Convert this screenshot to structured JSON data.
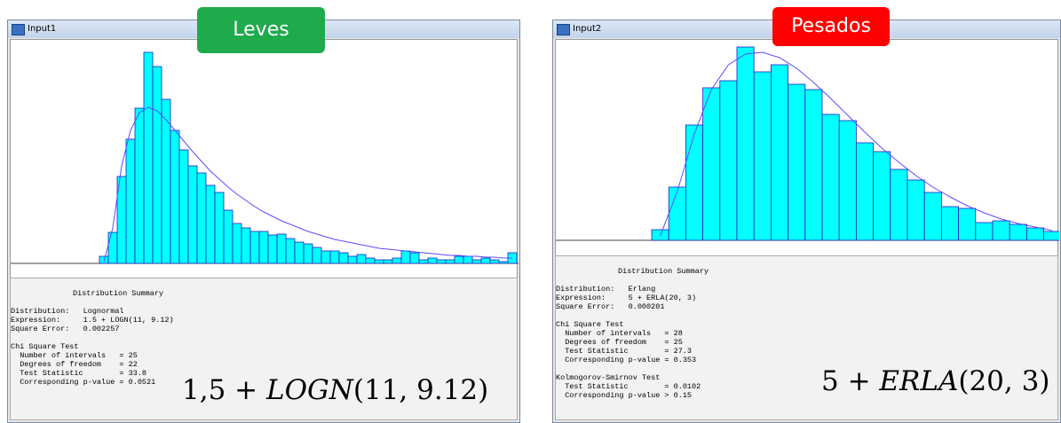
{
  "windows": [
    {
      "title": "Input1",
      "badge": "Leves",
      "histogram": {
        "type": "bar",
        "values": [
          8,
          35,
          98,
          140,
          175,
          238,
          222,
          185,
          150,
          128,
          110,
          102,
          88,
          80,
          60,
          45,
          40,
          36,
          36,
          32,
          33,
          28,
          24,
          22,
          18,
          14,
          14,
          12,
          8,
          10,
          6,
          4,
          4,
          6,
          14,
          12,
          4,
          6,
          4,
          4,
          8,
          8,
          4,
          6,
          4,
          2,
          12
        ],
        "curve": [
          2,
          40,
          110,
          150,
          170,
          176,
          172,
          162,
          150,
          138,
          126,
          115,
          104,
          95,
          86,
          78,
          71,
          64,
          58,
          53,
          48,
          44,
          40,
          36,
          33,
          30,
          27,
          25,
          23,
          21,
          19,
          17,
          16,
          15,
          14,
          13,
          12,
          11,
          10,
          9,
          9,
          8,
          8,
          7,
          7,
          6,
          6
        ]
      },
      "summary": {
        "heading": "Distribution Summary",
        "lines": [
          "Distribution:   Lognormal",
          "Expression:     1.5 + LOGN(11, 9.12)",
          "Square Error:   0.002257"
        ],
        "chi_title": "Chi Square Test",
        "chi_lines": [
          "  Number of intervals   = 25",
          "  Degrees of freedom    = 22",
          "  Test Statistic        = 33.8",
          "  Corresponding p-value = 0.0521"
        ]
      },
      "formula": {
        "prefix": "1,5 + ",
        "func": "LOGN",
        "args": "(11, 9.12)"
      }
    },
    {
      "title": "Input2",
      "badge": "Pesados",
      "histogram": {
        "type": "bar",
        "values": [
          12,
          60,
          130,
          172,
          180,
          218,
          190,
          198,
          176,
          170,
          142,
          135,
          110,
          100,
          80,
          68,
          54,
          38,
          36,
          20,
          22,
          18,
          14,
          10
        ],
        "curve": [
          5,
          55,
          120,
          170,
          198,
          210,
          212,
          206,
          194,
          178,
          160,
          141,
          122,
          104,
          88,
          73,
          60,
          49,
          39,
          31,
          24,
          19,
          15,
          11
        ]
      },
      "summary": {
        "heading": "Distribution Summary",
        "lines": [
          "Distribution:   Erlang",
          "Expression:     5 + ERLA(20, 3)",
          "Square Error:   0.000201"
        ],
        "chi_title": "Chi Square Test",
        "chi_lines": [
          "  Number of intervals   = 28",
          "  Degrees of freedom    = 25",
          "  Test Statistic        = 27.3",
          "  Corresponding p-value = 0.353"
        ],
        "ks_title": "Kolmogorov-Smirnov Test",
        "ks_lines": [
          "  Test Statistic        = 0.0102",
          "  Corresponding p-value > 0.15"
        ]
      },
      "formula": {
        "prefix": "5 + ",
        "func": "ERLA",
        "args": "(20, 3)"
      }
    }
  ]
}
